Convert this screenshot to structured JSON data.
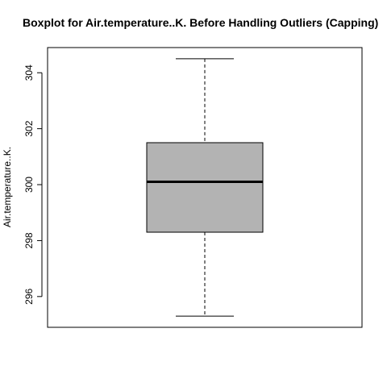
{
  "chart_data": {
    "type": "boxplot",
    "title": "Boxplot for Air.temperature..K. Before Handling Outliers (Capping)",
    "ylabel": "Air.temperature..K.",
    "xlabel": "",
    "ylim": [
      294.9,
      304.9
    ],
    "yticks": [
      296,
      298,
      300,
      302,
      304
    ],
    "box": {
      "min": 295.3,
      "q1": 298.3,
      "median": 300.1,
      "q3": 301.5,
      "max": 304.5
    },
    "colors": {
      "box_fill": "#b3b3b3",
      "line": "#000000"
    }
  }
}
